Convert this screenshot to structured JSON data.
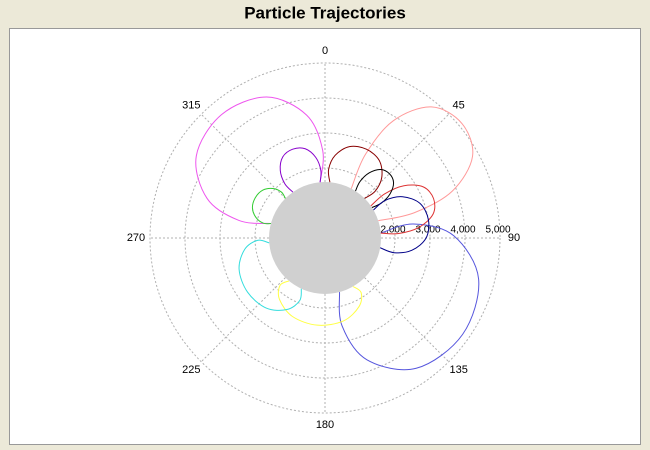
{
  "chart_data": {
    "type": "polar",
    "title": "Particle Trajectories",
    "rlim": [
      0,
      5000
    ],
    "rticks": [
      {
        "value": 2000,
        "label": "2,000"
      },
      {
        "value": 3000,
        "label": "3,000"
      },
      {
        "value": 4000,
        "label": "4,000"
      },
      {
        "value": 5000,
        "label": "5,000"
      }
    ],
    "angle_ticks": [
      0,
      45,
      90,
      135,
      180,
      225,
      270,
      315
    ],
    "grid": true,
    "planet": {
      "radius": 1600,
      "color": "#d0d0d0"
    },
    "series": [
      {
        "color": "#ff9999",
        "theta": [
          28,
          25.8,
          30.2,
          39,
          50,
          61,
          69.8,
          74.2,
          72
        ],
        "values": [
          1600,
          2650,
          3875,
          4820,
          5100,
          4820,
          3875,
          2650,
          1600
        ]
      },
      {
        "color": "#5555dd",
        "theta": [
          85,
          81,
          89,
          105,
          125,
          145,
          161,
          169,
          165
        ],
        "values": [
          1600,
          2560,
          3680,
          4544,
          4800,
          4544,
          3680,
          2560,
          1600
        ]
      },
      {
        "color": "#ee55ee",
        "theta": [
          285,
          281.5,
          288.5,
          302.5,
          320,
          337.5,
          351.5,
          358.5,
          355
        ],
        "values": [
          1600,
          2500,
          3550,
          4360,
          4600,
          4360,
          3550,
          2500,
          1600
        ]
      },
      {
        "color": "#dd3333",
        "theta": [
          55,
          53.5,
          56.5,
          62.5,
          70,
          77.5,
          83.5,
          86.5,
          85
        ],
        "values": [
          1600,
          2110,
          2705,
          3164,
          3300,
          3164,
          2705,
          2110,
          1600
        ]
      },
      {
        "color": "#ffff44",
        "theta": [
          150,
          146.5,
          153.5,
          167.5,
          185,
          202.5,
          216.5,
          223.5,
          220
        ],
        "values": [
          1600,
          1870,
          2185,
          2428,
          2500,
          2428,
          2185,
          1870,
          1600
        ]
      },
      {
        "color": "#33dddd",
        "theta": [
          205,
          202,
          208,
          220,
          235,
          250,
          262,
          268,
          265
        ],
        "values": [
          1600,
          1930,
          2315,
          2612,
          2700,
          2612,
          2315,
          1930,
          1600
        ]
      },
      {
        "color": "#880000",
        "theta": [
          5,
          3,
          7,
          15,
          25,
          35,
          43,
          47,
          45
        ],
        "values": [
          1600,
          1960,
          2380,
          2704,
          2800,
          2704,
          2380,
          1960,
          1600
        ]
      },
      {
        "color": "#000000",
        "theta": [
          33,
          31.8,
          34.2,
          39,
          45,
          51,
          55.8,
          58.2,
          57
        ],
        "values": [
          1600,
          1900,
          2250,
          2520,
          2600,
          2520,
          2250,
          1900,
          1600
        ]
      },
      {
        "color": "#33cc33",
        "theta": [
          285,
          283.5,
          286.5,
          292.5,
          300,
          307.5,
          313.5,
          316.5,
          315
        ],
        "values": [
          1600,
          1810,
          2055,
          2244,
          2300,
          2244,
          2055,
          1810,
          1600
        ]
      },
      {
        "color": "#000088",
        "theta": [
          60,
          58,
          62,
          70,
          80,
          90,
          98,
          102,
          100
        ],
        "values": [
          1600,
          2020,
          2510,
          2888,
          3000,
          2888,
          2510,
          2020,
          1600
        ]
      },
      {
        "color": "#8800cc",
        "theta": [
          325,
          323.5,
          326.5,
          332.5,
          340,
          347.5,
          353.5,
          356.5,
          355
        ],
        "values": [
          1600,
          1930,
          2315,
          2612,
          2700,
          2612,
          2315,
          1930,
          1600
        ]
      }
    ]
  }
}
